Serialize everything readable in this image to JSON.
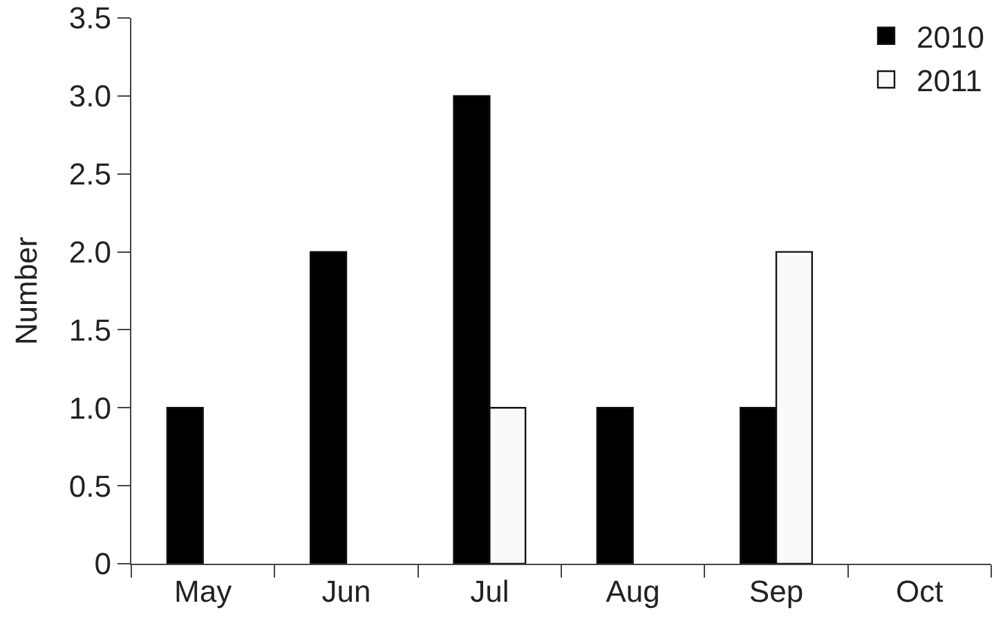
{
  "chart_data": {
    "type": "bar",
    "ylabel": "Number",
    "categories": [
      "May",
      "Jun",
      "Jul",
      "Aug",
      "Sep",
      "Oct"
    ],
    "series": [
      {
        "name": "2010",
        "color": "#000000",
        "values": [
          1,
          2,
          3,
          1,
          1,
          0
        ]
      },
      {
        "name": "2011",
        "color": "#fafafa",
        "values": [
          0,
          0,
          1,
          0,
          2,
          0
        ]
      }
    ],
    "ylim": [
      0,
      3.5
    ],
    "yticks": [
      0,
      0.5,
      {
        "value": 1,
        "label": "1.0"
      },
      1.5,
      {
        "value": 2,
        "label": "2.0"
      },
      2.5,
      {
        "value": 3,
        "label": "3.0"
      },
      3.5
    ],
    "legend": "top right"
  }
}
